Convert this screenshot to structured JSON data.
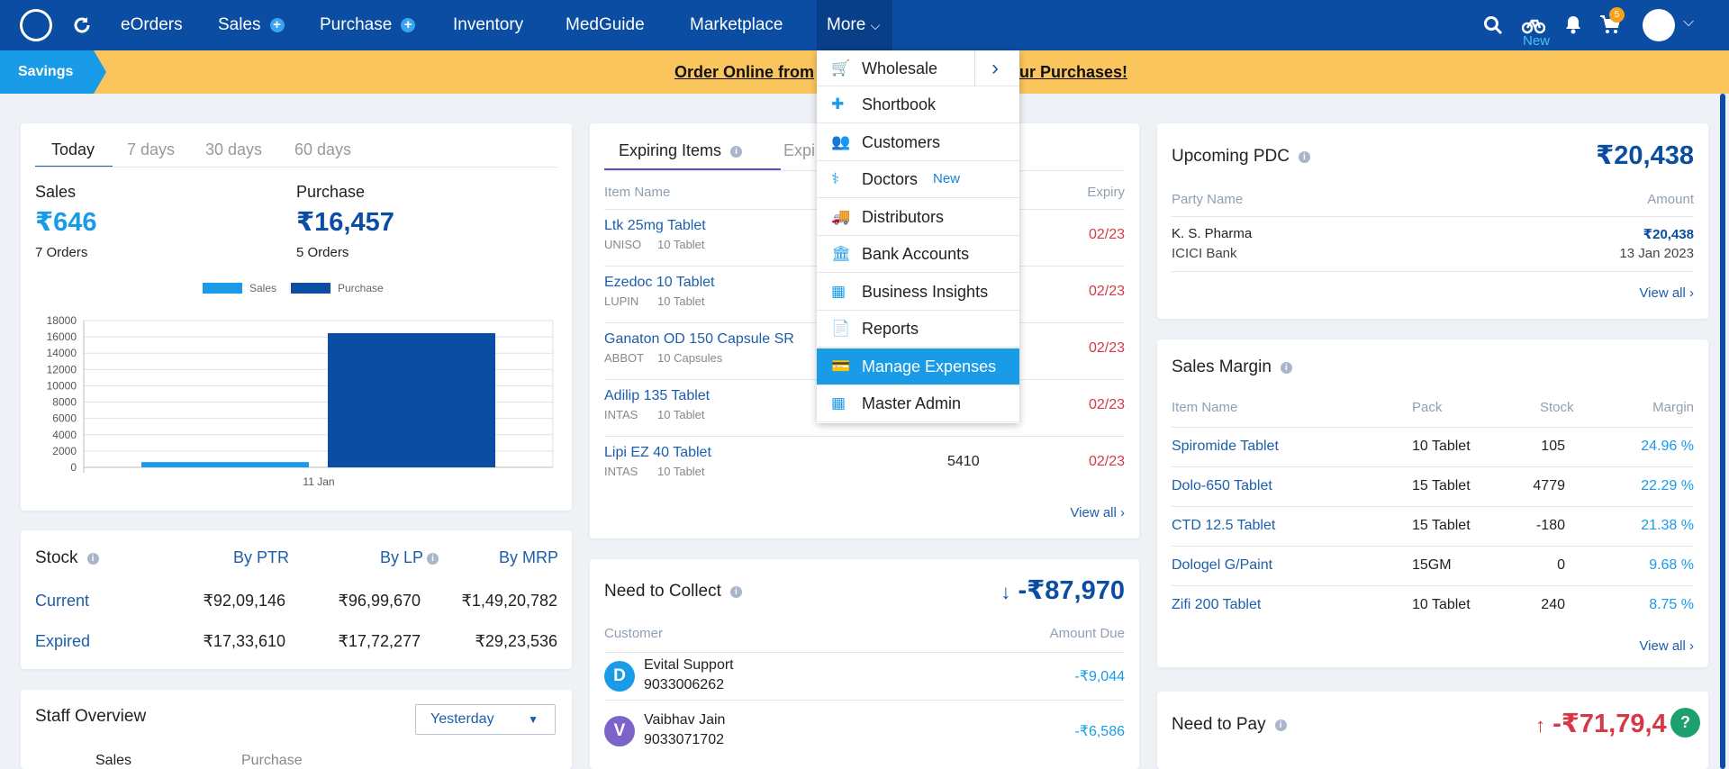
{
  "nav": {
    "items": [
      "eOrders",
      "Sales",
      "Purchase",
      "Inventory",
      "MedGuide",
      "Marketplace",
      "More"
    ],
    "new_label": "New",
    "cart_count": "5"
  },
  "savings": {
    "tag": "Savings",
    "text": "Order Online from ... ur Purchases!",
    "text_left": "Order Online from",
    "text_right": "ur Purchases!"
  },
  "dashboard": {
    "tabs": [
      "Today",
      "7 days",
      "30 days",
      "60 days"
    ],
    "sales": {
      "label": "Sales",
      "value": "₹646",
      "orders": "7 Orders"
    },
    "purchase": {
      "label": "Purchase",
      "value": "₹16,457",
      "orders": "5 Orders"
    }
  },
  "chart_data": {
    "type": "bar",
    "categories": [
      "11 Jan"
    ],
    "series": [
      {
        "name": "Sales",
        "values": [
          646
        ],
        "color": "#1a9be8"
      },
      {
        "name": "Purchase",
        "values": [
          16457
        ],
        "color": "#0a4da2"
      }
    ],
    "ylim": [
      0,
      18000
    ],
    "yticks": [
      0,
      2000,
      4000,
      6000,
      8000,
      10000,
      12000,
      14000,
      16000,
      18000
    ],
    "legend": "top-center"
  },
  "stock": {
    "title": "Stock",
    "cols": [
      "By PTR",
      "By LP",
      "By MRP"
    ],
    "rows": [
      {
        "label": "Current",
        "values": [
          "₹92,09,146",
          "₹96,99,670",
          "₹1,49,20,782"
        ]
      },
      {
        "label": "Expired",
        "values": [
          "₹17,33,610",
          "₹17,72,277",
          "₹29,23,536"
        ]
      }
    ]
  },
  "staff": {
    "title": "Staff Overview",
    "period": "Yesterday",
    "cols": [
      "Sales",
      "Purchase"
    ]
  },
  "expiring": {
    "tabs": [
      "Expiring Items",
      "Expi"
    ],
    "head": [
      "Item Name",
      "Expiry"
    ],
    "rows": [
      {
        "name": "Ltk 25mg Tablet",
        "sub1": "UNISO",
        "sub2": "10 Tablet",
        "qty": "",
        "expiry": "02/23"
      },
      {
        "name": "Ezedoc 10 Tablet",
        "sub1": "LUPIN",
        "sub2": "10 Tablet",
        "qty": "",
        "expiry": "02/23"
      },
      {
        "name": "Ganaton OD 150 Capsule SR",
        "sub1": "ABBOT",
        "sub2": "10 Capsules",
        "qty": "",
        "expiry": "02/23"
      },
      {
        "name": "Adilip 135 Tablet",
        "sub1": "INTAS",
        "sub2": "10 Tablet",
        "qty": "",
        "expiry": "02/23"
      },
      {
        "name": "Lipi EZ 40 Tablet",
        "sub1": "INTAS",
        "sub2": "10 Tablet",
        "qty": "5410",
        "expiry": "02/23"
      }
    ],
    "view_all": "View all"
  },
  "collect": {
    "title": "Need to Collect",
    "total": "-₹87,970",
    "head": [
      "Customer",
      "Amount Due"
    ],
    "rows": [
      {
        "initial": "D",
        "name": "Evital Support",
        "phone": "9033006262",
        "amount": "-₹9,044",
        "color": "#1a9be8"
      },
      {
        "initial": "V",
        "name": "Vaibhav Jain",
        "phone": "9033071702",
        "amount": "-₹6,586",
        "color": "#7b63c9"
      }
    ]
  },
  "pdc": {
    "title": "Upcoming PDC",
    "total": "₹20,438",
    "head": [
      "Party Name",
      "Amount"
    ],
    "party": "K. S. Pharma",
    "bank": "ICICI Bank",
    "amount": "₹20,438",
    "date": "13 Jan 2023",
    "view_all": "View all"
  },
  "margin": {
    "title": "Sales Margin",
    "head": [
      "Item Name",
      "Pack",
      "Stock",
      "Margin"
    ],
    "rows": [
      {
        "name": "Spiromide Tablet",
        "pack": "10 Tablet",
        "stock": "105",
        "margin": "24.96 %"
      },
      {
        "name": "Dolo-650 Tablet",
        "pack": "15 Tablet",
        "stock": "4779",
        "margin": "22.29 %"
      },
      {
        "name": "CTD 12.5 Tablet",
        "pack": "15 Tablet",
        "stock": "-180",
        "margin": "21.38 %"
      },
      {
        "name": "Dologel G/Paint",
        "pack": "15GM",
        "stock": "0",
        "margin": "9.68 %"
      },
      {
        "name": "Zifi 200 Tablet",
        "pack": "10 Tablet",
        "stock": "240",
        "margin": "8.75 %"
      }
    ],
    "view_all": "View all"
  },
  "pay": {
    "title": "Need to Pay",
    "total": "-₹71,79,4"
  },
  "help": "?",
  "dropdown": [
    "Wholesale",
    "Shortbook",
    "Customers",
    "Doctors",
    "Distributors",
    "Bank Accounts",
    "Business Insights",
    "Reports",
    "Manage Expenses",
    "Master Admin"
  ],
  "dropdown_badge": "New"
}
